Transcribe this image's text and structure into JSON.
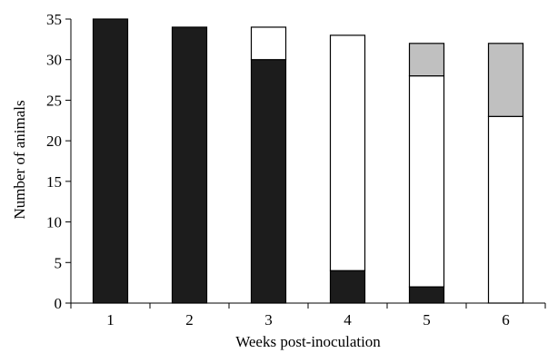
{
  "chart_data": {
    "type": "bar",
    "stacked": true,
    "title": "",
    "xlabel": "Weeks post-inoculation",
    "ylabel": "Number of animals",
    "ylim": [
      0,
      35
    ],
    "yticks": [
      0,
      5,
      10,
      15,
      20,
      25,
      30,
      35
    ],
    "grid": false,
    "legend": "none",
    "categories": [
      "1",
      "2",
      "3",
      "4",
      "5",
      "6"
    ],
    "series": [
      {
        "values": [
          35,
          34,
          30,
          4,
          2,
          0
        ],
        "color": "#1c1c1c"
      },
      {
        "values": [
          0,
          0,
          4,
          29,
          26,
          23
        ],
        "color": "#ffffff"
      },
      {
        "values": [
          0,
          0,
          0,
          0,
          4,
          9
        ],
        "color": "#c0c0c0"
      }
    ]
  }
}
